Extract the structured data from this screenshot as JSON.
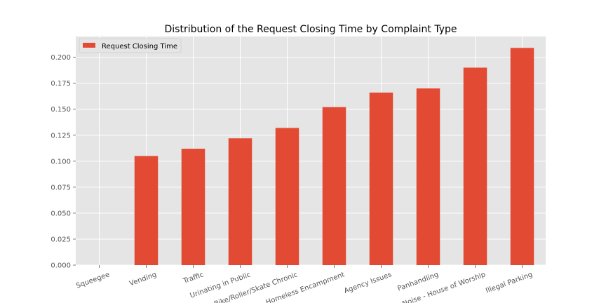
{
  "chart_data": {
    "type": "bar",
    "title": "Distribution of the Request Closing Time by Complaint Type",
    "xlabel": "",
    "ylabel": "",
    "categories": [
      "Squeegee",
      "Vending",
      "Traffic",
      "Urinating in Public",
      "Bike/Roller/Skate Chronic",
      "Homeless Encampment",
      "Agency Issues",
      "Panhandling",
      "Noise - House of Worship",
      "Illegal Parking"
    ],
    "series": [
      {
        "name": "Request Closing Time",
        "color": "#E24A33",
        "values": [
          0.0,
          0.105,
          0.112,
          0.122,
          0.132,
          0.152,
          0.166,
          0.17,
          0.19,
          0.209
        ]
      }
    ],
    "ylim": [
      0,
      0.22
    ],
    "yticks": [
      0.0,
      0.025,
      0.05,
      0.075,
      0.1,
      0.125,
      0.15,
      0.175,
      0.2
    ],
    "ytick_labels": [
      "0.000",
      "0.025",
      "0.050",
      "0.075",
      "0.100",
      "0.125",
      "0.150",
      "0.175",
      "0.200"
    ],
    "grid": true,
    "legend_position": "top-left",
    "plot_background": "#E5E5E5",
    "grid_color": "#FFFFFF"
  }
}
